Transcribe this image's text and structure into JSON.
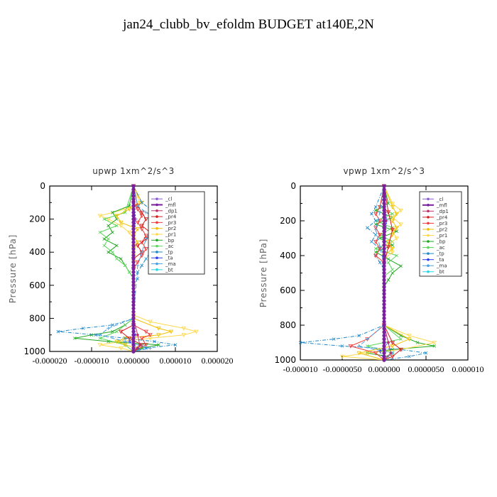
{
  "title": "jan24_clubb_bv_efoldm  BUDGET at140E,2N",
  "colors": {
    "_cl": "#8a5bd6",
    "_mfl": "#7a1f9e",
    "_dp1": "#c0306a",
    "_pr4": "#d42020",
    "_pr3": "#f23a3a",
    "_pr2": "#f0c000",
    "_pr1": "#ffd84a",
    "_bp": "#1fa81f",
    "_ac": "#5ad65a",
    "_tp": "#1e88c8",
    "_ta": "#2b3cf0",
    "_ma": "#4aa0e0",
    "_bt": "#22d8e8"
  },
  "chart_data": [
    {
      "type": "line",
      "title": "upwp   1xm^2/s^3",
      "ylabel": "Pressure [hPa]",
      "xlabel": "",
      "ylim": [
        1000,
        0
      ],
      "xlim": [
        -2e-05,
        2e-05
      ],
      "yticks": [
        "0",
        "200",
        "400",
        "600",
        "800",
        "1000"
      ],
      "xticks": [
        "-0.000020",
        "-0.000010",
        "0.000000",
        "0.000010",
        "0.000020"
      ],
      "legend_position": "top-right",
      "legend": [
        "_cl",
        "_mfl",
        "_dp1",
        "_pr4",
        "_pr3",
        "_pr2",
        "_pr1",
        "_bp",
        "_ac",
        "_tp",
        "_ta",
        "_ma",
        "_bt"
      ],
      "series": [
        {
          "name": "_pr1",
          "p": [
            0,
            60,
            100,
            140,
            180,
            200,
            240,
            280,
            320,
            360,
            400,
            600,
            780,
            820,
            860,
            880,
            900,
            920,
            940,
            960,
            980,
            1000
          ],
          "v": [
            0,
            1e-06,
            1.5e-06,
            -2e-06,
            -8e-06,
            -6e-06,
            -3e-06,
            -1e-06,
            0,
            0,
            0,
            0,
            0,
            4e-06,
            1.2e-05,
            1.5e-05,
            1.2e-05,
            4e-06,
            -3e-06,
            -8e-06,
            -3e-06,
            0
          ]
        },
        {
          "name": "_bp",
          "p": [
            0,
            120,
            160,
            200,
            240,
            280,
            320,
            360,
            400,
            440,
            480,
            520,
            560,
            800,
            840,
            880,
            900,
            920,
            940,
            960,
            980,
            1000
          ],
          "v": [
            0,
            -1e-06,
            -5e-06,
            -4e-06,
            -6e-06,
            -5e-06,
            -7e-06,
            -4e-06,
            -6e-06,
            -3e-06,
            -2e-06,
            -1e-06,
            0,
            0,
            -2e-06,
            -5e-06,
            -1e-05,
            -1.4e-05,
            -6e-06,
            6e-06,
            2e-06,
            0
          ]
        },
        {
          "name": "_ac",
          "p": [
            0,
            160,
            200,
            240,
            280,
            320,
            360,
            400,
            440,
            480,
            520,
            560,
            800,
            880,
            920,
            960,
            1000
          ],
          "v": [
            0,
            -2e-06,
            -7e-06,
            -4e-06,
            -8e-06,
            -6e-06,
            -7e-06,
            -5e-06,
            -4e-06,
            -2e-06,
            -1e-06,
            0,
            0,
            -4e-06,
            -8e-06,
            -2e-06,
            0
          ]
        },
        {
          "name": "_pr2",
          "p": [
            0,
            100,
            140,
            180,
            220,
            260,
            300,
            340,
            380,
            420,
            460,
            500,
            800,
            860,
            880,
            900,
            920,
            940,
            960,
            980,
            1000
          ],
          "v": [
            0,
            2e-06,
            -1e-06,
            -4e-06,
            -3e-06,
            1e-06,
            0,
            1e-06,
            0,
            0,
            0,
            0,
            0,
            6e-06,
            9e-06,
            6e-06,
            -2e-06,
            -4e-06,
            -2e-06,
            1e-06,
            0
          ]
        },
        {
          "name": "_pr3",
          "p": [
            0,
            100,
            140,
            180,
            220,
            260,
            300,
            340,
            380,
            420,
            460,
            500,
            840,
            880,
            900,
            920,
            960,
            1000
          ],
          "v": [
            0,
            0,
            1e-06,
            2e-06,
            1e-06,
            2e-06,
            3e-06,
            2e-06,
            3e-06,
            2e-06,
            1e-06,
            0,
            0,
            3e-06,
            4e-06,
            2e-06,
            3e-06,
            0
          ]
        },
        {
          "name": "_pr4",
          "p": [
            0,
            120,
            160,
            200,
            240,
            280,
            320,
            360,
            400,
            440,
            840,
            880,
            920,
            960,
            1000
          ],
          "v": [
            0,
            1e-06,
            2e-06,
            3e-06,
            2e-06,
            4e-06,
            3e-06,
            1e-06,
            2e-06,
            0,
            0,
            -3e-06,
            -1e-06,
            2e-06,
            0
          ]
        },
        {
          "name": "_tp",
          "p": [
            0,
            100,
            140,
            180,
            200,
            240,
            280,
            320,
            360,
            400,
            440,
            480,
            520,
            560,
            600,
            800,
            840,
            860,
            880,
            900,
            920,
            940,
            960,
            980,
            1000
          ],
          "v": [
            0,
            2e-06,
            4e-06,
            8e-06,
            1.2e-05,
            1e-05,
            8e-06,
            7e-06,
            5e-06,
            4e-06,
            3e-06,
            2e-06,
            1e-06,
            1e-06,
            0,
            0,
            -5e-06,
            -1.2e-05,
            -1.8e-05,
            -9e-06,
            -2e-06,
            5e-06,
            1e-05,
            3e-06,
            0
          ]
        },
        {
          "name": "_ma",
          "p": [
            0,
            120,
            160,
            200,
            240,
            280,
            320,
            400,
            480,
            800,
            860,
            900,
            940,
            980,
            1000
          ],
          "v": [
            0,
            1e-06,
            3e-06,
            6e-06,
            5e-06,
            4e-06,
            3e-06,
            2e-06,
            1e-06,
            0,
            -6e-06,
            -8e-06,
            -2e-06,
            4e-06,
            0
          ]
        },
        {
          "name": "_ta",
          "p": [
            0,
            200,
            400,
            600,
            800,
            900,
            940,
            980,
            1000
          ],
          "v": [
            0,
            5e-07,
            0,
            0,
            0,
            5e-07,
            -1e-06,
            1e-06,
            0
          ]
        },
        {
          "name": "_dp1",
          "p": [
            0,
            200,
            400,
            600,
            800,
            900,
            960,
            1000
          ],
          "v": [
            0,
            3e-07,
            0,
            0,
            0,
            1e-06,
            1.5e-06,
            0
          ]
        },
        {
          "name": "_bt",
          "p": [
            0,
            200,
            400,
            600,
            800,
            1000
          ],
          "v": [
            0,
            0,
            0,
            0,
            0,
            0
          ]
        },
        {
          "name": "_cl",
          "p": [
            0,
            200,
            400,
            600,
            800,
            1000
          ],
          "v": [
            0,
            0,
            0,
            0,
            0,
            0
          ]
        },
        {
          "name": "_mfl",
          "p": [
            0,
            1000
          ],
          "v": [
            0,
            0
          ]
        }
      ]
    },
    {
      "type": "line",
      "title": "vpwp   1xm^2/s^3",
      "ylabel": "Pressure [hPa]",
      "xlabel": "",
      "ylim": [
        1000,
        0
      ],
      "xlim": [
        -1e-05,
        1e-05
      ],
      "yticks": [
        "0",
        "200",
        "400",
        "600",
        "800",
        "1000"
      ],
      "xticks": [
        "-0.000010",
        "-0.0000050",
        "0.000000",
        "0.0000050",
        "0.000010"
      ],
      "legend_position": "top-right",
      "legend": [
        "_cl",
        "_mfl",
        "_dp1",
        "_pr4",
        "_pr3",
        "_pr2",
        "_pr1",
        "_bp",
        "_ac",
        "_tp",
        "_ta",
        "_ma",
        "_bt"
      ],
      "series": [
        {
          "name": "_bp",
          "p": [
            0,
            100,
            140,
            180,
            220,
            260,
            300,
            340,
            380,
            420,
            460,
            500,
            540,
            580,
            620,
            800,
            860,
            900,
            920,
            940,
            960,
            980,
            1000
          ],
          "v": [
            0,
            5e-07,
            -1e-06,
            1e-06,
            -1e-06,
            1.5e-06,
            -5e-07,
            1e-06,
            -1e-06,
            5e-07,
            2e-06,
            1e-06,
            5e-07,
            0,
            0,
            0,
            2e-06,
            4e-06,
            6e-06,
            1e-06,
            -2e-06,
            5e-07,
            0
          ]
        },
        {
          "name": "_ac",
          "p": [
            0,
            120,
            160,
            200,
            240,
            280,
            320,
            360,
            400,
            440,
            480,
            520,
            800,
            880,
            920,
            960,
            1000
          ],
          "v": [
            0,
            -5e-07,
            1e-06,
            -1e-06,
            1e-06,
            -5e-07,
            1e-06,
            -1e-06,
            1.5e-06,
            5e-07,
            1e-06,
            0,
            0,
            2e-06,
            -2e-06,
            1e-06,
            0
          ]
        },
        {
          "name": "_tp",
          "p": [
            0,
            120,
            160,
            200,
            240,
            280,
            320,
            360,
            400,
            440,
            480,
            800,
            860,
            880,
            900,
            920,
            940,
            960,
            980,
            1000
          ],
          "v": [
            0,
            -1e-06,
            -1.5e-06,
            -1e-06,
            -2e-06,
            -1e-06,
            -1.5e-06,
            -5e-07,
            -1e-06,
            -5e-07,
            0,
            0,
            -3e-06,
            -6e-06,
            -1e-05,
            -5e-06,
            2e-06,
            5e-06,
            3e-06,
            0
          ]
        },
        {
          "name": "_pr1",
          "p": [
            0,
            100,
            140,
            180,
            220,
            260,
            300,
            340,
            380,
            420,
            800,
            860,
            900,
            940,
            960,
            980,
            1000
          ],
          "v": [
            0,
            1e-06,
            2e-06,
            1e-06,
            2e-06,
            1e-06,
            1.5e-06,
            5e-07,
            1e-06,
            0,
            0,
            3e-06,
            6e-06,
            2e-06,
            -2e-06,
            -5e-06,
            0
          ]
        },
        {
          "name": "_pr2",
          "p": [
            0,
            120,
            160,
            200,
            240,
            280,
            320,
            360,
            400,
            800,
            880,
            920,
            960,
            1000
          ],
          "v": [
            0,
            1e-06,
            1.5e-06,
            1e-06,
            1.5e-06,
            1e-06,
            5e-07,
            1e-06,
            0,
            0,
            3e-06,
            1e-06,
            -3e-06,
            0
          ]
        },
        {
          "name": "_pr3",
          "p": [
            0,
            120,
            160,
            200,
            240,
            280,
            320,
            360,
            400,
            440,
            800,
            880,
            920,
            960,
            1000
          ],
          "v": [
            0,
            -5e-07,
            -1e-06,
            -5e-07,
            -1e-06,
            -5e-07,
            -1e-06,
            -5e-07,
            -1e-06,
            0,
            0,
            -2e-06,
            -4e-06,
            -1e-06,
            0
          ]
        },
        {
          "name": "_pr4",
          "p": [
            0,
            150,
            250,
            350,
            450,
            800,
            900,
            940,
            980,
            1000
          ],
          "v": [
            0,
            5e-07,
            1e-06,
            5e-07,
            0,
            0,
            1e-06,
            2e-06,
            1e-06,
            0
          ]
        },
        {
          "name": "_ma",
          "p": [
            0,
            150,
            250,
            350,
            450,
            800,
            880,
            920,
            960,
            1000
          ],
          "v": [
            0,
            -5e-07,
            -1e-06,
            -5e-07,
            0,
            0,
            -2e-06,
            -3e-06,
            1e-06,
            0
          ]
        },
        {
          "name": "_ta",
          "p": [
            0,
            200,
            400,
            800,
            900,
            950,
            1000
          ],
          "v": [
            0,
            3e-07,
            0,
            0,
            5e-07,
            -5e-07,
            0
          ]
        },
        {
          "name": "_dp1",
          "p": [
            0,
            200,
            400,
            800,
            900,
            960,
            1000
          ],
          "v": [
            0,
            2e-07,
            0,
            0,
            5e-07,
            8e-07,
            0
          ]
        },
        {
          "name": "_bt",
          "p": [
            0,
            500,
            1000
          ],
          "v": [
            0,
            0,
            0
          ]
        },
        {
          "name": "_cl",
          "p": [
            0,
            500,
            1000
          ],
          "v": [
            0,
            0,
            0
          ]
        },
        {
          "name": "_mfl",
          "p": [
            0,
            1000
          ],
          "v": [
            0,
            0
          ]
        }
      ]
    }
  ]
}
